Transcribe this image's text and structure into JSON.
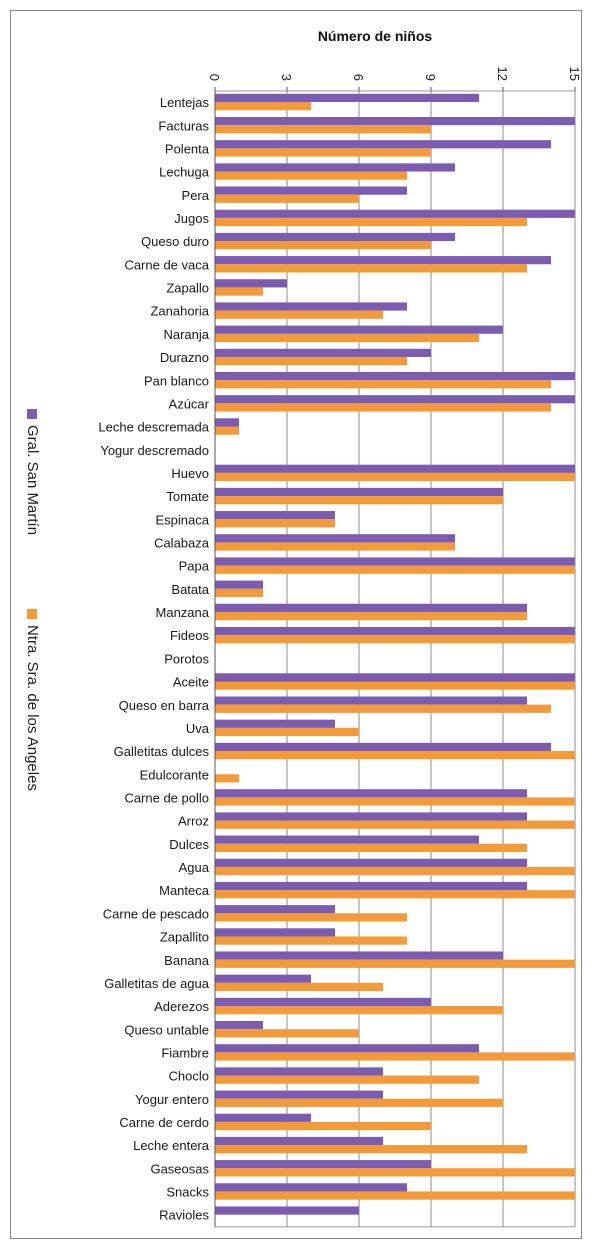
{
  "chart_data": {
    "type": "bar",
    "orientation": "horizontal",
    "title": "Número de niños",
    "xlim": [
      0,
      15
    ],
    "ticks": [
      0,
      3,
      6,
      9,
      12,
      15
    ],
    "grid": true,
    "legend_position": "left, rotated",
    "categories": [
      "Lentejas",
      "Facturas",
      "Polenta",
      "Lechuga",
      "Pera",
      "Jugos",
      "Queso duro",
      "Carne de vaca",
      "Zapallo",
      "Zanahoria",
      "Naranja",
      "Durazno",
      "Pan blanco",
      "Azúcar",
      "Leche descremada",
      "Yogur descremado",
      "Huevo",
      "Tomate",
      "Espinaca",
      "Calabaza",
      "Papa",
      "Batata",
      "Manzana",
      "Fideos",
      "Porotos",
      "Aceite",
      "Queso en barra",
      "Uva",
      "Galletitas dulces",
      "Edulcorante",
      "Carne de pollo",
      "Arroz",
      "Dulces",
      "Agua",
      "Manteca",
      "Carne de pescado",
      "Zapallito",
      "Banana",
      "Galletitas de agua",
      "Aderezos",
      "Queso untable",
      "Fiambre",
      "Choclo",
      "Yogur entero",
      "Carne de cerdo",
      "Leche entera",
      "Gaseosas",
      "Snacks",
      "Ravioles"
    ],
    "series": [
      {
        "name": "Gral. San Martín",
        "color": "#7b5cb0",
        "values": [
          11,
          15,
          14,
          10,
          8,
          15,
          10,
          14,
          3,
          8,
          12,
          9,
          15,
          15,
          1,
          0,
          15,
          12,
          5,
          10,
          15,
          2,
          13,
          15,
          0,
          15,
          13,
          5,
          14,
          0,
          13,
          13,
          11,
          13,
          13,
          5,
          5,
          12,
          4,
          9,
          2,
          11,
          7,
          7,
          4,
          7,
          9,
          8,
          6
        ]
      },
      {
        "name": "Ntra. Sra. de los Angeles",
        "color": "#f39a3a",
        "values": [
          4,
          9,
          9,
          8,
          6,
          13,
          9,
          13,
          2,
          7,
          11,
          8,
          14,
          14,
          1,
          0,
          15,
          12,
          5,
          10,
          15,
          2,
          13,
          15,
          0,
          15,
          14,
          6,
          15,
          1,
          15,
          15,
          13,
          15,
          15,
          8,
          8,
          15,
          7,
          12,
          6,
          15,
          11,
          12,
          9,
          13,
          15,
          15,
          0
        ]
      }
    ]
  }
}
